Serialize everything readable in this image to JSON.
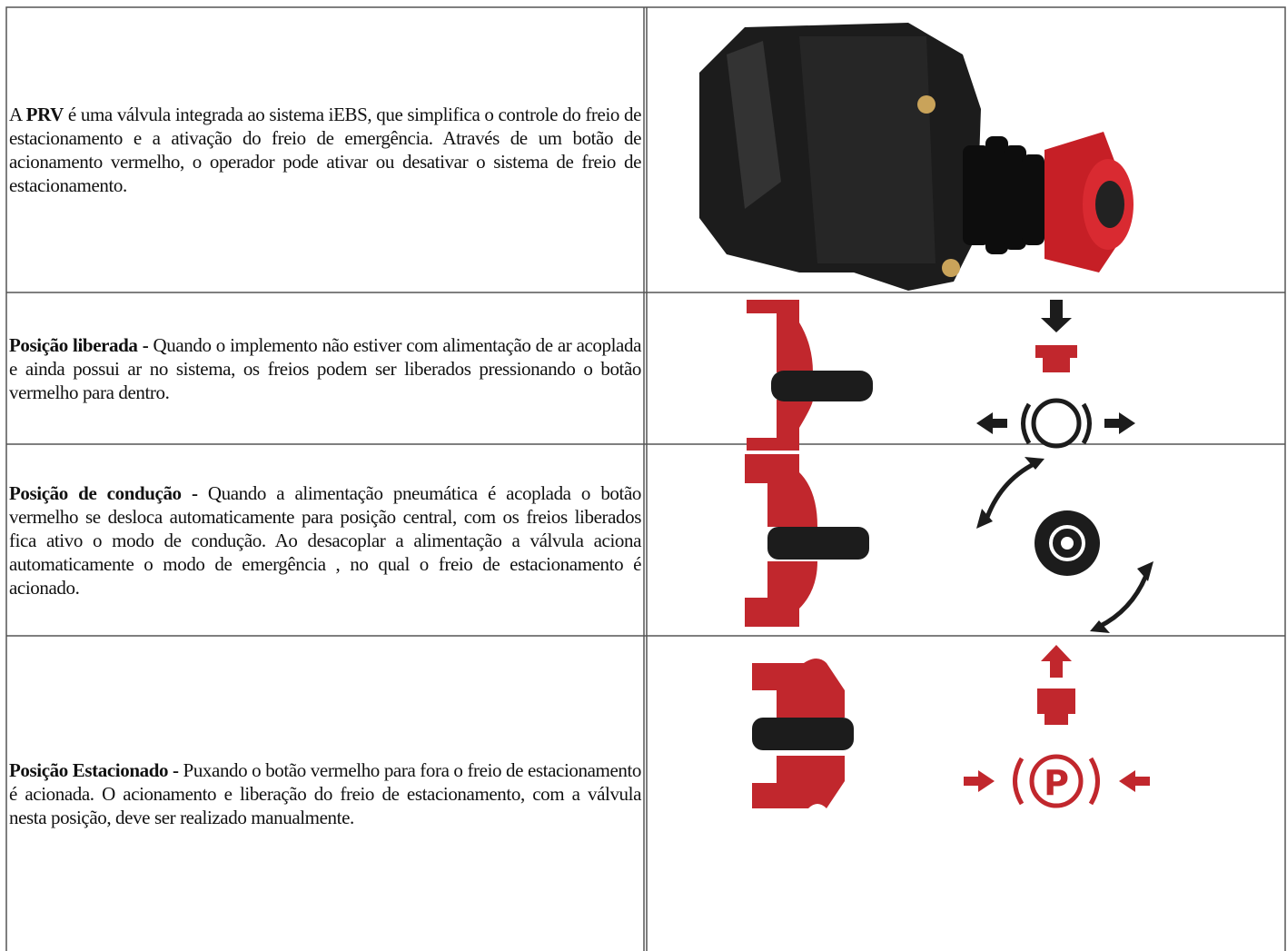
{
  "table": {
    "rows": [
      {
        "lead": "A",
        "bold": "PRV",
        "body": "é uma válvula integrada ao sistema iEBS, que simplifica o controle do freio de estacionamento e a ativação do freio de emergência. Através de um botão de acionamento vermelho, o operador pode ativar ou desativar o sistema de freio de estacionamento."
      },
      {
        "bold": "Posição liberada -",
        "body": "Quando o implemento não estiver com alimentação de ar acoplada e ainda possui ar no sistema, os freios podem ser liberados pressionando o botão vermelho para dentro."
      },
      {
        "bold": "Posição de condução -",
        "body": "Quando a alimentação pneumática é acoplada o botão vermelho se desloca automaticamente para posição central, com os freios liberados fica ativo o modo de condução. Ao desacoplar a alimentação a válvula aciona automaticamente o modo de emergência , no qual o freio de estacionamento é acionado."
      },
      {
        "bold": "Posição Estacionado -",
        "body": "Puxando o botão vermelho para fora o freio de estacionamento é acionada. O acionamento e liberação do freio de estacionamento, com a válvula nesta posição, deve ser realizado manualmente."
      }
    ]
  }
}
